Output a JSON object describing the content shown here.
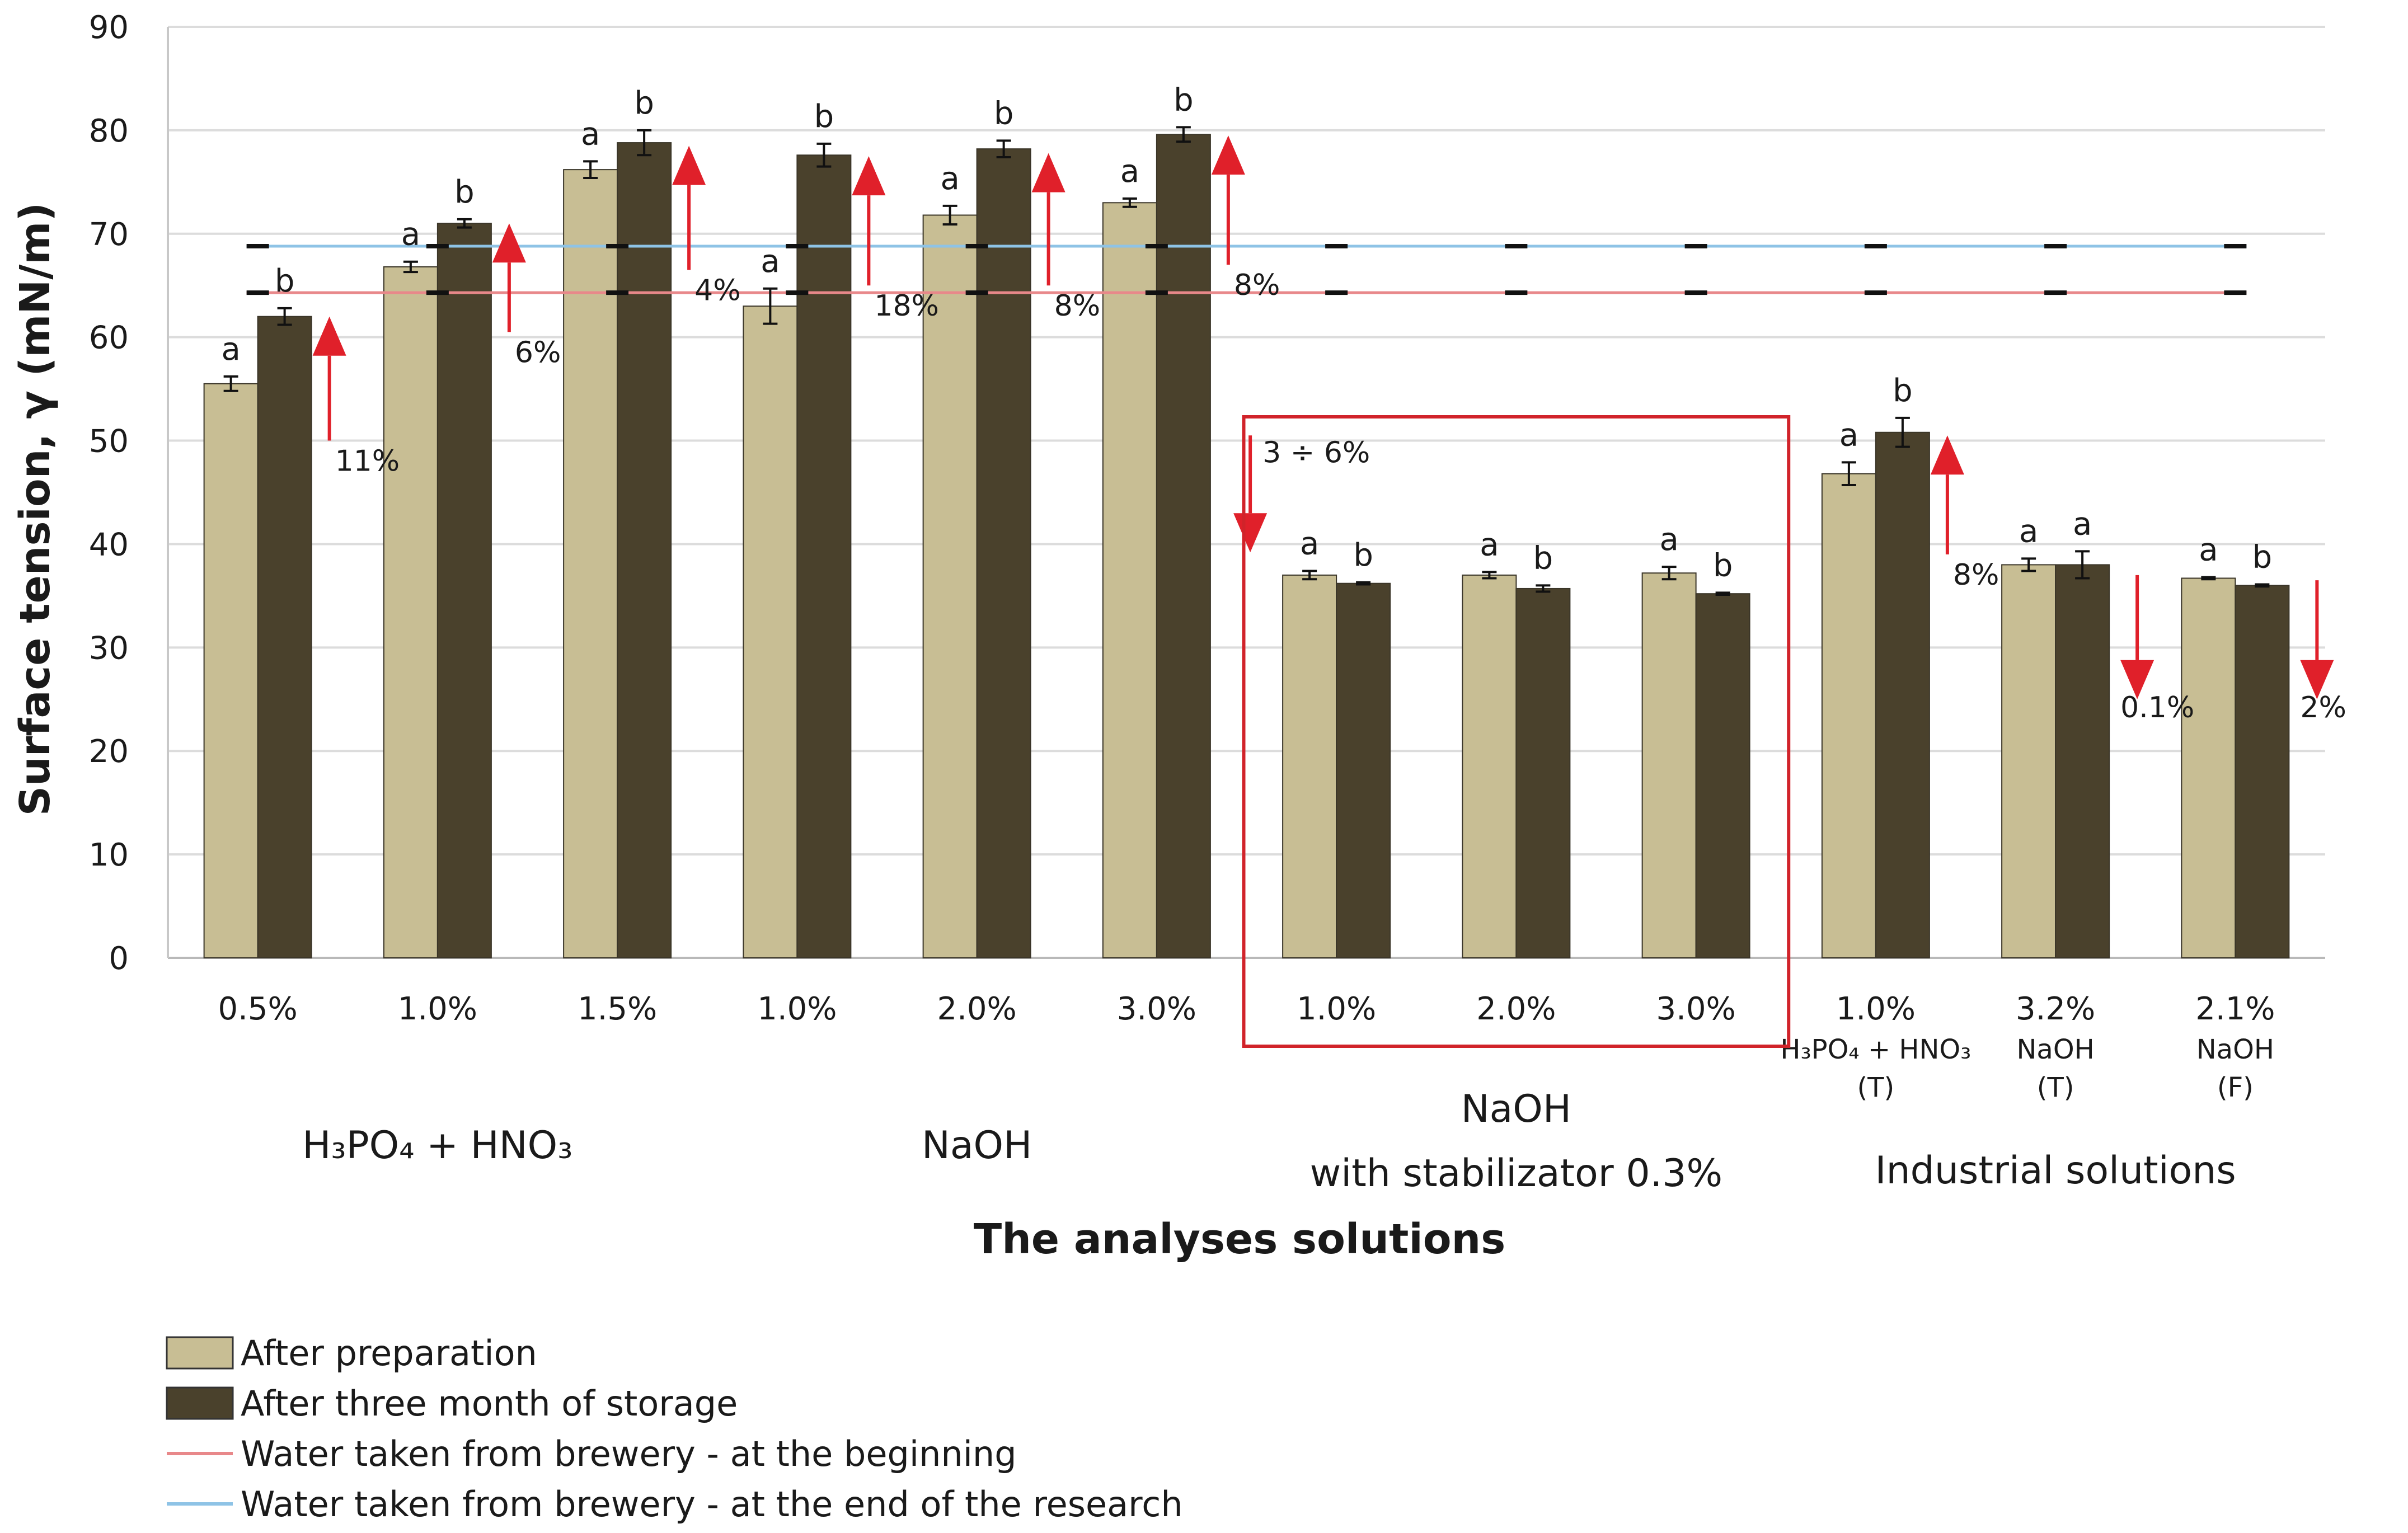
{
  "chart_data": {
    "type": "bar",
    "ylabel": "Surface tension, γ (mN/m)",
    "xlabel": "The analyses solutions",
    "ylim": [
      0,
      90
    ],
    "yticks": [
      0,
      10,
      20,
      30,
      40,
      50,
      60,
      70,
      80,
      90
    ],
    "grid": true,
    "legend_position": "bottom-left",
    "categories": [
      {
        "label": "0.5%"
      },
      {
        "label": "1.0%"
      },
      {
        "label": "1.5%"
      },
      {
        "label": "1.0%"
      },
      {
        "label": "2.0%"
      },
      {
        "label": "3.0%"
      },
      {
        "label": "1.0%"
      },
      {
        "label": "2.0%"
      },
      {
        "label": "3.0%"
      },
      {
        "label": "1.0%",
        "sub1": "H₃PO₄ + HNO₃",
        "sub2": "(T)"
      },
      {
        "label": "3.2%",
        "sub1": "NaOH",
        "sub2": "(T)"
      },
      {
        "label": "2.1%",
        "sub1": "NaOH",
        "sub2": "(F)"
      }
    ],
    "series": [
      {
        "name": "After preparation",
        "color": "#c8be94",
        "values": [
          55.5,
          66.8,
          76.2,
          63.0,
          71.8,
          73.0,
          37.0,
          37.0,
          37.2,
          46.8,
          38.0,
          36.7
        ],
        "errors": [
          0.7,
          0.5,
          0.8,
          1.7,
          0.9,
          0.4,
          0.4,
          0.3,
          0.6,
          1.1,
          0.6,
          0.1
        ],
        "letters": [
          "a",
          "a",
          "a",
          "a",
          "a",
          "a",
          "a",
          "a",
          "a",
          "a",
          "a",
          "a"
        ]
      },
      {
        "name": "After three month of storage",
        "color": "#4a412c",
        "values": [
          62.0,
          71.0,
          78.8,
          77.6,
          78.2,
          79.6,
          36.2,
          35.7,
          35.2,
          50.8,
          38.0,
          36.0
        ],
        "errors": [
          0.8,
          0.4,
          1.2,
          1.1,
          0.8,
          0.7,
          0.1,
          0.3,
          0.1,
          1.4,
          1.3,
          0.1
        ],
        "letters": [
          "b",
          "b",
          "b",
          "b",
          "b",
          "b",
          "b",
          "b",
          "b",
          "b",
          "a",
          "b"
        ]
      }
    ],
    "reference_lines": [
      {
        "name": "Water taken from brewery - at the beginning",
        "value": 64.3,
        "color": "#e8888a"
      },
      {
        "name": "Water taken from brewery - at the end of the research",
        "value": 68.8,
        "color": "#8ec3e6"
      }
    ],
    "change_annotations": [
      {
        "group": 0,
        "text": "11%",
        "direction": "up",
        "from": 50.0,
        "to": 62.0
      },
      {
        "group": 1,
        "text": "6%",
        "direction": "up",
        "from": 60.5,
        "to": 71.0
      },
      {
        "group": 2,
        "text": "4%",
        "direction": "up",
        "from": 66.5,
        "to": 78.5
      },
      {
        "group": 3,
        "text": "18%",
        "direction": "up",
        "from": 65.0,
        "to": 77.5
      },
      {
        "group": 4,
        "text": "8%",
        "direction": "up",
        "from": 65.0,
        "to": 77.8
      },
      {
        "group": 5,
        "text": "8%",
        "direction": "up",
        "from": 67.0,
        "to": 79.5
      },
      {
        "group": 6,
        "text": "3 ÷ 6%",
        "direction": "down",
        "from": 50.5,
        "to": 39.2
      },
      {
        "group": 9,
        "text": "8%",
        "direction": "up",
        "from": 39.0,
        "to": 50.5
      },
      {
        "group": 10,
        "text": "0.1%",
        "direction": "down",
        "from": 37.0,
        "to": 25.0
      },
      {
        "group": 11,
        "text": "2%",
        "direction": "down",
        "from": 36.5,
        "to": 25.0
      }
    ],
    "group_labels": [
      {
        "line1": "H₃PO₄ + HNO₃"
      },
      {
        "line1": "NaOH"
      },
      {
        "line1": "NaOH",
        "line2": "with stabilizator 0.3%"
      },
      {
        "line1": "Industrial solutions"
      }
    ],
    "highlight_box_color": "#d1232a",
    "arrow_color": "#e0202a"
  }
}
